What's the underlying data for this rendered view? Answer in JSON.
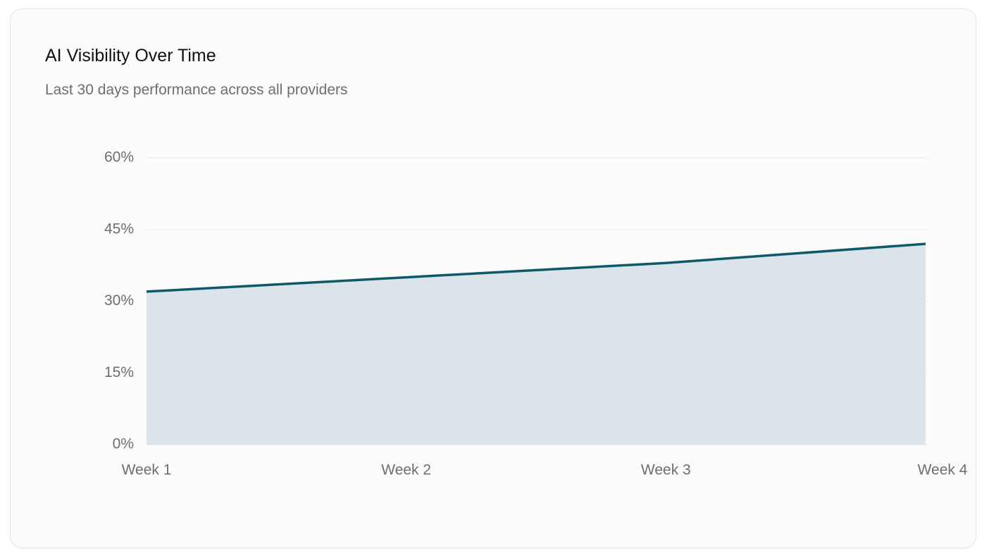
{
  "chart_data": {
    "type": "area",
    "title": "AI Visibility Over Time",
    "subtitle": "Last 30 days performance across all providers",
    "categories": [
      "Week 1",
      "Week 2",
      "Week 3",
      "Week 4"
    ],
    "values": [
      32,
      35,
      38,
      42
    ],
    "color": "#0f5a69",
    "fill_color": "#dae4ea",
    "ylim": [
      0,
      60
    ],
    "yticks": [
      {
        "value": 0,
        "label": "0%"
      },
      {
        "value": 15,
        "label": "15%"
      },
      {
        "value": 30,
        "label": "30%"
      },
      {
        "value": 45,
        "label": "45%"
      },
      {
        "value": 60,
        "label": "60%"
      }
    ],
    "grid": true
  }
}
